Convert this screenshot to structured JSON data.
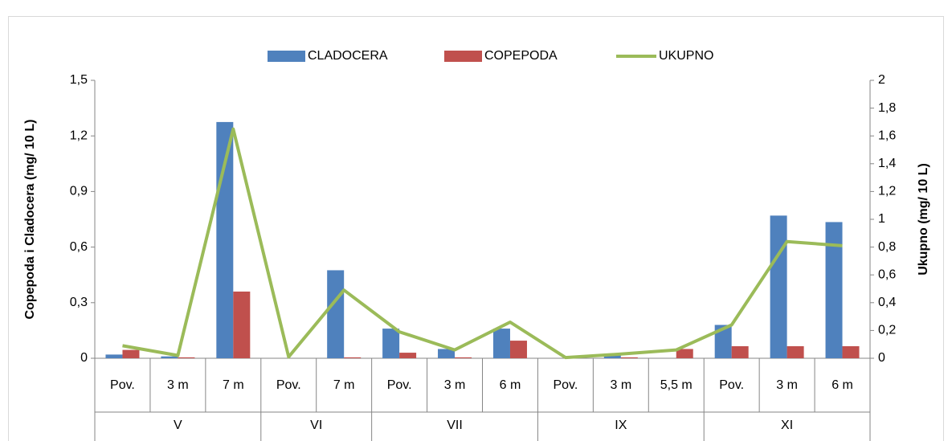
{
  "chart_data": {
    "type": "bar_line",
    "categories": [
      "Pov.",
      "3 m",
      "7 m",
      "Pov.",
      "7 m",
      "Pov.",
      "3 m",
      "6 m",
      "Pov.",
      "3 m",
      "5,5 m",
      "Pov.",
      "3 m",
      "6 m"
    ],
    "groups": [
      {
        "label": "V",
        "size": 3
      },
      {
        "label": "VI",
        "size": 2
      },
      {
        "label": "VII",
        "size": 3
      },
      {
        "label": "IX",
        "size": 3
      },
      {
        "label": "XI",
        "size": 3
      }
    ],
    "series": [
      {
        "name": "CLADOCERA",
        "color": "#4f81bd",
        "kind": "bar",
        "values": [
          0.02,
          0.01,
          1.275,
          0,
          0.475,
          0.16,
          0.05,
          0.16,
          0,
          0.025,
          0,
          0.18,
          0.77,
          0.735
        ]
      },
      {
        "name": "COPEPODA",
        "color": "#c0504d",
        "kind": "bar",
        "values": [
          0.045,
          0.005,
          0.36,
          0,
          0.005,
          0.03,
          0.005,
          0.095,
          0,
          0.005,
          0.05,
          0.065,
          0.065,
          0.065
        ]
      },
      {
        "name": "UKUPNO",
        "color": "#9bbb59",
        "kind": "line",
        "axis": "y2",
        "values": [
          0.09,
          0.02,
          1.65,
          0.01,
          0.49,
          0.19,
          0.06,
          0.26,
          0.005,
          0.03,
          0.06,
          0.24,
          0.84,
          0.81
        ]
      }
    ],
    "ylabel": "Copepoda i Cladocera (mg/ 10 L)",
    "y2label": "Ukupno (mg/ 10 L)",
    "ylim": [
      0,
      1.5
    ],
    "yticks": [
      0,
      {
        "value": 0.3,
        "label": "0,3"
      },
      {
        "value": 0.6,
        "label": "0,6"
      },
      {
        "value": 0.9,
        "label": "0,9"
      },
      {
        "value": 1.2,
        "label": "1,2"
      },
      {
        "value": 1.5,
        "label": "1,5"
      }
    ],
    "y2lim": [
      0,
      2
    ],
    "y2ticks": [
      0,
      {
        "value": 0.2,
        "label": "0,2"
      },
      {
        "value": 0.4,
        "label": "0,4"
      },
      {
        "value": 0.6,
        "label": "0,6"
      },
      {
        "value": 0.8,
        "label": "0,8"
      },
      1,
      {
        "value": 1.2,
        "label": "1,2"
      },
      {
        "value": 1.4,
        "label": "1,4"
      },
      {
        "value": 1.6,
        "label": "1,6"
      },
      {
        "value": 1.8,
        "label": "1,8"
      },
      2
    ],
    "legend": "top"
  }
}
